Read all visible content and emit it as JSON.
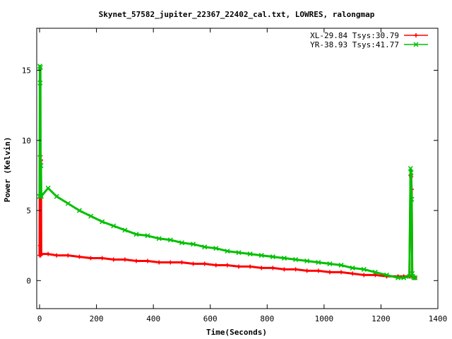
{
  "chart_data": {
    "type": "line",
    "title": "Skynet_57582_jupiter_22367_22402_cal.txt, LOWRES, ralongmap",
    "xlabel": "Time(Seconds)",
    "ylabel": "Power (Kelvin)",
    "xlim": [
      -10,
      1400
    ],
    "ylim": [
      -2,
      18
    ],
    "xticks": [
      0,
      200,
      400,
      600,
      800,
      1000,
      1200,
      1400
    ],
    "yticks": [
      0,
      5,
      10,
      15
    ],
    "grid": false,
    "legend_position": "top-right",
    "series": [
      {
        "name": "XL-29.84 Tsys:30.79",
        "color": "#ff0000",
        "marker": "plus",
        "x": [
          0,
          1,
          2,
          3,
          4,
          5,
          6,
          30,
          60,
          100,
          140,
          180,
          220,
          260,
          300,
          340,
          380,
          420,
          460,
          500,
          540,
          580,
          620,
          660,
          700,
          740,
          780,
          820,
          860,
          900,
          940,
          980,
          1020,
          1060,
          1100,
          1140,
          1180,
          1220,
          1260,
          1280,
          1300,
          1304,
          1306,
          1308,
          1310,
          1312,
          1316,
          1320
        ],
        "y": [
          1.8,
          8.9,
          2.5,
          8.9,
          1.8,
          8.6,
          1.9,
          1.9,
          1.8,
          1.8,
          1.7,
          1.6,
          1.6,
          1.5,
          1.5,
          1.4,
          1.4,
          1.3,
          1.3,
          1.3,
          1.2,
          1.2,
          1.1,
          1.1,
          1.0,
          1.0,
          0.9,
          0.9,
          0.8,
          0.8,
          0.7,
          0.7,
          0.6,
          0.6,
          0.5,
          0.4,
          0.4,
          0.3,
          0.3,
          0.3,
          0.3,
          7.5,
          7.4,
          6.5,
          0.4,
          0.3,
          0.2,
          0.2
        ]
      },
      {
        "name": "YR-38.93 Tsys:41.77",
        "color": "#00c000",
        "marker": "cross",
        "x": [
          0,
          1,
          2,
          3,
          4,
          5,
          6,
          30,
          60,
          100,
          140,
          180,
          220,
          260,
          300,
          340,
          380,
          420,
          460,
          500,
          540,
          580,
          620,
          660,
          700,
          740,
          780,
          820,
          860,
          900,
          940,
          980,
          1020,
          1060,
          1100,
          1140,
          1180,
          1220,
          1260,
          1280,
          1300,
          1304,
          1306,
          1308,
          1310,
          1312,
          1316,
          1320
        ],
        "y": [
          6.0,
          15.3,
          14.1,
          15.2,
          6.1,
          8.2,
          6.0,
          6.6,
          6.0,
          5.5,
          5.0,
          4.6,
          4.2,
          3.9,
          3.6,
          3.3,
          3.2,
          3.0,
          2.9,
          2.7,
          2.6,
          2.4,
          2.3,
          2.1,
          2.0,
          1.9,
          1.8,
          1.7,
          1.6,
          1.5,
          1.4,
          1.3,
          1.2,
          1.1,
          0.9,
          0.8,
          0.6,
          0.4,
          0.2,
          0.2,
          0.3,
          8.0,
          7.7,
          5.8,
          0.5,
          0.3,
          0.2,
          0.2
        ]
      }
    ]
  }
}
